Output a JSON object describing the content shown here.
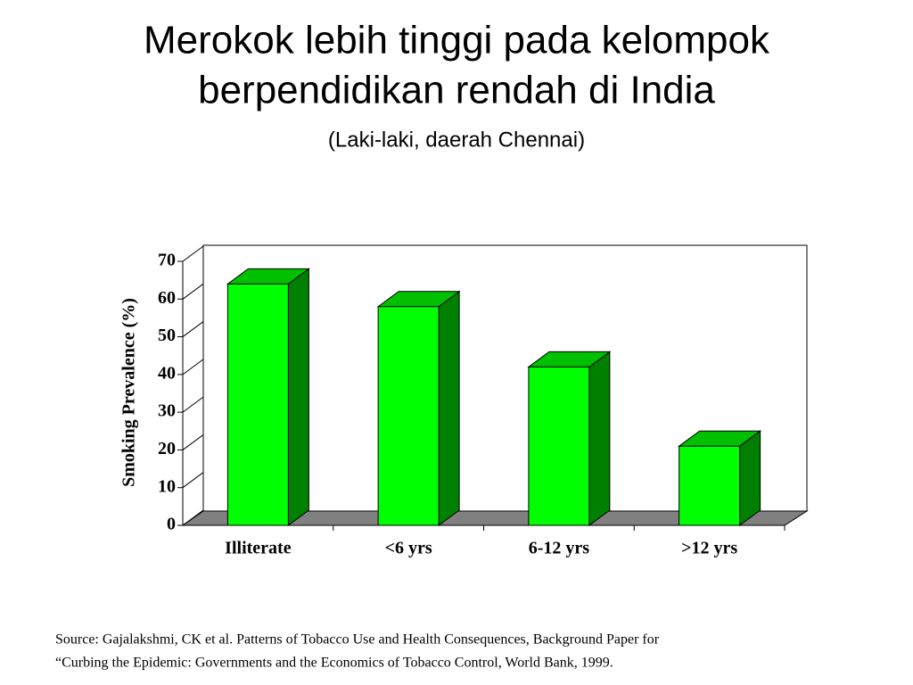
{
  "chart_data": {
    "type": "bar3d",
    "title": [
      "Merokok lebih tinggi pada kelompok",
      "berpendidikan rendah di India"
    ],
    "subtitle": "(Laki-laki, daerah Chennai)",
    "y_label": "Smoking Prevalence (%)",
    "categories": [
      "Illiterate",
      "<6 yrs",
      "6-12 yrs",
      ">12 yrs"
    ],
    "values": [
      64,
      58,
      42,
      21
    ],
    "color": "#00ff00",
    "ylim": [
      0,
      70
    ],
    "yticks": [
      0,
      10,
      20,
      30,
      40,
      50,
      60,
      70
    ],
    "source": [
      "Source:  Gajalakshmi, CK et al.  Patterns of Tobacco Use and Health Consequences, Background Paper for",
      "“Curbing the Epidemic: Governments and the Economics of Tobacco Control, World Bank, 1999."
    ]
  }
}
